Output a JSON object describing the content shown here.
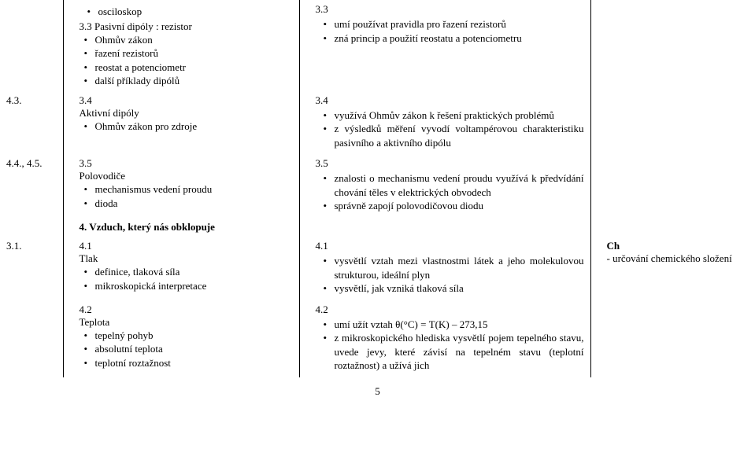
{
  "rows": [
    {
      "col1": "",
      "col2_blocks": [
        {
          "type": "ul",
          "items": [
            "osciloskop"
          ]
        },
        {
          "type": "p",
          "text": "3.3 Pasivní dipóly : rezistor"
        },
        {
          "type": "sub",
          "items": [
            "Ohmův zákon",
            "řazení rezistorů",
            "reostat a potenciometr",
            "další příklady dipólů"
          ]
        }
      ],
      "col3_blocks": [
        {
          "type": "p",
          "text": "3.3"
        },
        {
          "type": "ul",
          "items": [
            "umí používat pravidla pro řazení rezistorů",
            "zná princip a použití reostatu a potenciometru"
          ]
        }
      ],
      "col4_blocks": []
    },
    {
      "col1": "4.3.",
      "col2_blocks": [
        {
          "type": "p",
          "text": "3.4"
        },
        {
          "type": "p",
          "text": "Aktivní dipóly"
        },
        {
          "type": "sub",
          "items": [
            "Ohmův zákon pro zdroje"
          ]
        }
      ],
      "col3_blocks": [
        {
          "type": "p",
          "text": "3.4"
        },
        {
          "type": "ul",
          "items": [
            "využívá Ohmův zákon k řešení praktických problémů",
            "z výsledků měření vyvodí voltampérovou charakteristiku pasivního a aktivního dipólu"
          ]
        }
      ],
      "col4_blocks": []
    },
    {
      "col1": "4.4., 4.5.",
      "col2_blocks": [
        {
          "type": "p",
          "text": "3.5"
        },
        {
          "type": "p",
          "text": "Polovodiče"
        },
        {
          "type": "sub",
          "items": [
            "mechanismus vedení proudu",
            "dioda"
          ]
        }
      ],
      "col3_blocks": [
        {
          "type": "p",
          "text": "3.5"
        },
        {
          "type": "ul",
          "items": [
            "znalosti o mechanismu vedení proudu využívá k předvídání chování těles v elektrických obvodech",
            "správně zapojí polovodičovou diodu"
          ]
        }
      ],
      "col4_blocks": []
    },
    {
      "col1": "",
      "col2_blocks": [
        {
          "type": "pbold",
          "text": "4. Vzduch, který nás obklopuje"
        }
      ],
      "col3_blocks": [],
      "col4_blocks": []
    },
    {
      "col1": "3.1.",
      "col2_blocks": [
        {
          "type": "p",
          "text": "4.1"
        },
        {
          "type": "p",
          "text": "Tlak"
        },
        {
          "type": "sub",
          "items": [
            "definice, tlaková síla",
            "mikroskopická interpretace"
          ]
        }
      ],
      "col3_blocks": [
        {
          "type": "p",
          "text": "4.1"
        },
        {
          "type": "ul",
          "items": [
            "vysvětlí vztah mezi vlastnostmi látek a jeho molekulovou strukturou, ideální plyn",
            "vysvětlí, jak vzniká tlaková síla"
          ]
        }
      ],
      "col4_blocks": [
        {
          "type": "pbold",
          "text": "Ch"
        },
        {
          "type": "p",
          "text": "- určování chemického složení"
        }
      ]
    },
    {
      "col1": "",
      "col2_blocks": [
        {
          "type": "p",
          "text": "4.2"
        },
        {
          "type": "p",
          "text": "Teplota"
        },
        {
          "type": "sub",
          "items": [
            "tepelný pohyb",
            "absolutní teplota",
            "teplotní roztažnost"
          ]
        }
      ],
      "col3_blocks": [
        {
          "type": "p",
          "text": "4.2"
        },
        {
          "type": "ul",
          "items": [
            "umí užít vztah θ(°C) = T(K) – 273,15",
            "z mikroskopického hlediska vysvětlí pojem tepelného stavu, uvede jevy, které závisí na tepelném stavu (teplotní roztažnost) a užívá jich"
          ]
        }
      ],
      "col4_blocks": []
    }
  ],
  "page_number": "5"
}
